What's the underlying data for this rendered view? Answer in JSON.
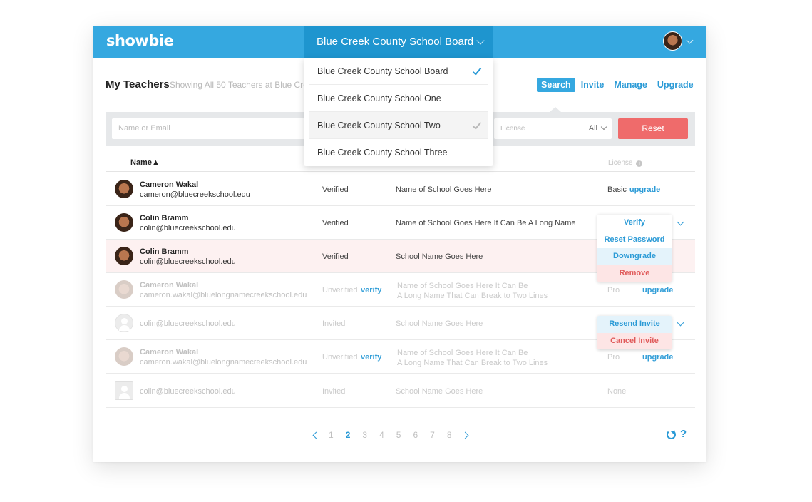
{
  "app": {
    "logo": "showbie"
  },
  "header": {
    "school_selected": "Blue Creek County School Board",
    "dropdown": [
      {
        "label": "Blue Creek County School Board",
        "state": "checked"
      },
      {
        "label": "Blue Creek County School One",
        "state": "none"
      },
      {
        "label": "Blue Creek County School Two",
        "state": "hover-check"
      },
      {
        "label": "Blue Creek County School Three",
        "state": "none"
      }
    ]
  },
  "page": {
    "title": "My Teachers",
    "subtitle": "Showing All 50 Teachers at Blue Cre"
  },
  "actions": [
    "Search",
    "Invite",
    "Manage",
    "Upgrade"
  ],
  "filters": {
    "search_placeholder": "Name or Email",
    "license_placeholder": "License",
    "license_value": "All",
    "reset_label": "Reset"
  },
  "table": {
    "col_name": "Name",
    "sort_glyph": "▲",
    "col_license": "License",
    "info_glyph": "i",
    "rows": [
      {
        "name": "Cameron Wakal",
        "email": "cameron@bluecreekschool.edu",
        "status": "Verified",
        "verify": "",
        "school": "Name of School Goes Here",
        "school2": "",
        "license": "Basic",
        "license_link": "upgrade"
      },
      {
        "name": "Colin Bramm",
        "email": "colin@bluecreekschool.edu",
        "status": "Verified",
        "verify": "",
        "school": "Name of School Goes Here It Can Be  A Long Name",
        "school2": "",
        "license": "",
        "license_link": ""
      },
      {
        "name": "Colin Bramm",
        "email": "colin@bluecreekschool.edu",
        "status": "Verified",
        "verify": "",
        "school": "School Name Goes Here",
        "school2": "",
        "license": "",
        "license_link": ""
      },
      {
        "name": "Cameron Wakal",
        "email": "cameron.wakal@bluelongnamecreekschool.edu",
        "status": "Unverified",
        "verify": "verify",
        "school": "Name of School Goes Here It Can Be",
        "school2": "A Long Name That Can Break to Two Lines",
        "license": "Pro",
        "license_link": "upgrade"
      },
      {
        "name": "",
        "email": "colin@bluecreekschool.edu",
        "status": "Invited",
        "verify": "",
        "school": "School Name Goes Here",
        "school2": "",
        "license": "",
        "license_link": ""
      },
      {
        "name": "Cameron Wakal",
        "email": "cameron.wakal@bluelongnamecreekschool.edu",
        "status": "Unverified",
        "verify": "verify",
        "school": "Name of School Goes Here It Can Be",
        "school2": "A Long Name That Can Break to Two Lines",
        "license": "Pro",
        "license_link": "upgrade"
      },
      {
        "name": "",
        "email": "colin@bluecreekschool.edu",
        "status": "Invited",
        "verify": "",
        "school": "School Name Goes Here",
        "school2": "",
        "license": "None",
        "license_link": ""
      }
    ]
  },
  "row_menu_1": [
    "Verify",
    "Reset Password",
    "Downgrade",
    "Remove"
  ],
  "row_menu_2": [
    "Resend Invite",
    "Cancel Invite"
  ],
  "pagination": {
    "prev": "<",
    "pages": [
      "1",
      "2",
      "3",
      "4",
      "5",
      "6",
      "7",
      "8"
    ],
    "current": "2",
    "next": ">"
  },
  "footer": {
    "help": "?"
  },
  "colors": {
    "brand": "#35a8e0",
    "brand_dark": "#1e95cf",
    "link": "#2a9ad6",
    "danger": "#ef6b6b"
  }
}
